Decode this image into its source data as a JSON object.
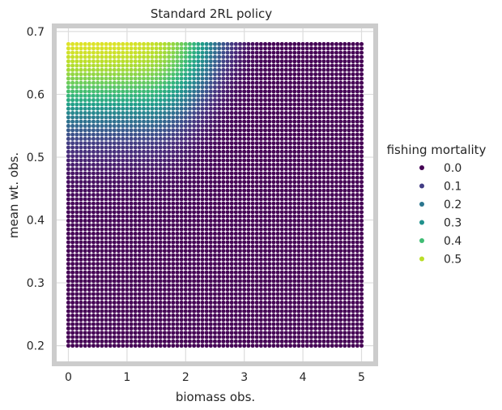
{
  "chart_data": {
    "type": "scatter",
    "title": "Standard 2RL policy",
    "xlabel": "biomass obs.",
    "ylabel": "mean wt. obs.",
    "xlim": [
      -0.2,
      5.2
    ],
    "ylim": [
      0.175,
      0.705
    ],
    "xticks": [
      "0",
      "1",
      "2",
      "3",
      "4",
      "5"
    ],
    "yticks": [
      "0.2",
      "0.3",
      "0.4",
      "0.5",
      "0.6",
      "0.7"
    ],
    "grid": true,
    "x_range": [
      0,
      5
    ],
    "y_range": [
      0.2,
      0.68
    ],
    "grid_points": {
      "nx": 71,
      "ny": 71
    },
    "color_variable": "fishing mortality",
    "colormap": "viridis",
    "color_range": [
      0.0,
      0.55
    ],
    "legend_placement": "right",
    "legend": {
      "title": "fishing mortality",
      "entries": [
        {
          "label": "0.0",
          "color": "#440154"
        },
        {
          "label": "0.1",
          "color": "#433e85"
        },
        {
          "label": "0.2",
          "color": "#2b758e"
        },
        {
          "label": "0.3",
          "color": "#21918c"
        },
        {
          "label": "0.4",
          "color": "#3fbc73"
        },
        {
          "label": "0.5",
          "color": "#bade28"
        }
      ]
    }
  }
}
